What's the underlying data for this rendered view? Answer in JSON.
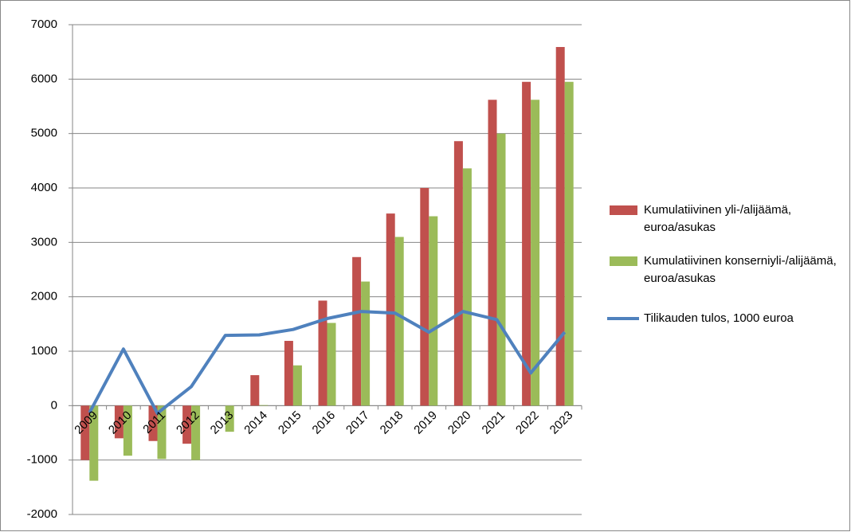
{
  "chart_data": {
    "type": "bar",
    "categories": [
      "2009",
      "2010",
      "2011",
      "2012",
      "2013",
      "2014",
      "2015",
      "2016",
      "2017",
      "2018",
      "2019",
      "2020",
      "2021",
      "2022",
      "2023"
    ],
    "series": [
      {
        "name": "Kumulatiivinen yli-/alijäämä, euroa/asukas",
        "color": "#c0504d",
        "type": "bar",
        "values": [
          -1000,
          -600,
          -650,
          -700,
          0,
          560,
          1190,
          1930,
          2730,
          3530,
          4000,
          4860,
          5620,
          5950,
          6590
        ]
      },
      {
        "name": "Kumulatiivinen konserniyli-/alijäämä, euroa/asukas",
        "color": "#9bbb59",
        "type": "bar",
        "values": [
          -1380,
          -920,
          -980,
          -1000,
          -480,
          10,
          740,
          1520,
          2280,
          3100,
          3480,
          4360,
          5000,
          5620,
          5950
        ]
      },
      {
        "name": "Tilikauden tulos, 1000 euroa",
        "color": "#4f81bd",
        "type": "line",
        "values": [
          -130,
          1040,
          -140,
          350,
          1290,
          1300,
          1400,
          1600,
          1730,
          1700,
          1350,
          1730,
          1580,
          600,
          1350
        ]
      }
    ],
    "ylim": [
      -2000,
      7000
    ],
    "yticks": [
      -2000,
      -1000,
      0,
      1000,
      2000,
      3000,
      4000,
      5000,
      6000,
      7000
    ],
    "grid": true,
    "legend": "right"
  }
}
